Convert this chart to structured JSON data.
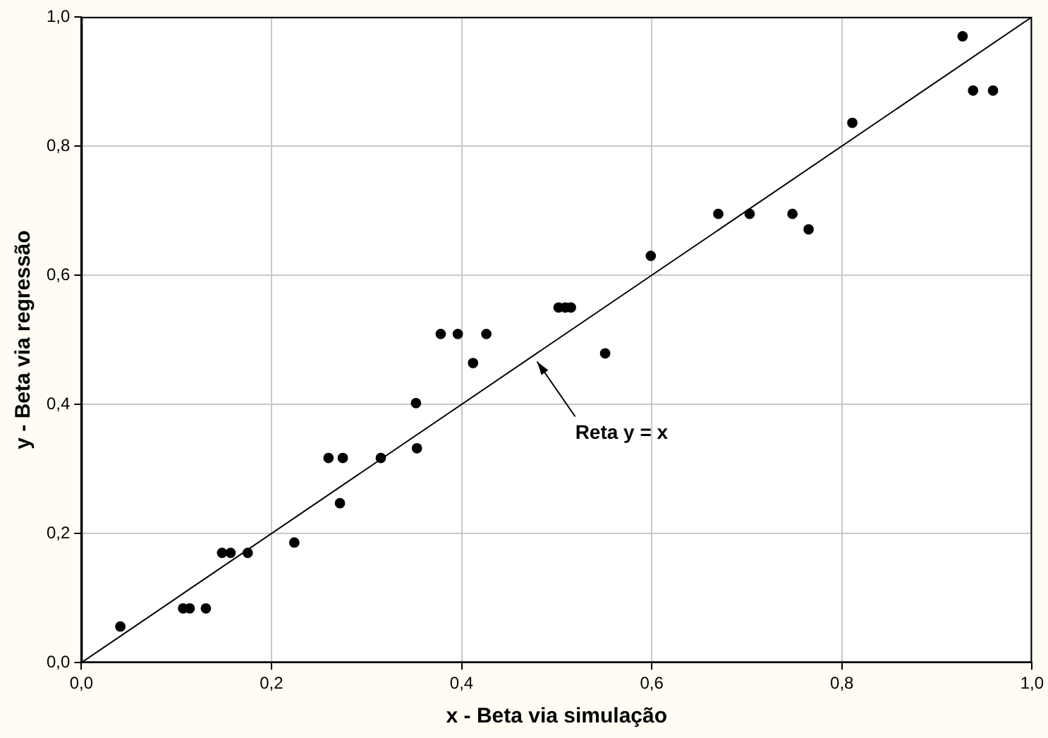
{
  "chart_data": {
    "type": "scatter",
    "xlabel": "x - Beta via simulação",
    "ylabel": "y - Beta via regressão",
    "series": [
      {
        "color": "#000000",
        "marker": "circle",
        "x": [
          0.041,
          0.107,
          0.114,
          0.131,
          0.148,
          0.157,
          0.175,
          0.224,
          0.26,
          0.275,
          0.272,
          0.315,
          0.352,
          0.353,
          0.412,
          0.378,
          0.396,
          0.426,
          0.502,
          0.509,
          0.515,
          0.551,
          0.599,
          0.67,
          0.703,
          0.748,
          0.765,
          0.811,
          0.927,
          0.938,
          0.959
        ],
        "values": [
          0.056,
          0.084,
          0.084,
          0.084,
          0.17,
          0.17,
          0.17,
          0.186,
          0.317,
          0.317,
          0.247,
          0.317,
          0.402,
          0.332,
          0.464,
          0.509,
          0.509,
          0.509,
          0.55,
          0.55,
          0.55,
          0.479,
          0.63,
          0.695,
          0.695,
          0.695,
          0.671,
          0.836,
          0.97,
          0.886,
          0.886
        ]
      },
      {
        "type": "line",
        "color": "#000000",
        "marker": "none",
        "line_style": "solid",
        "x": [
          0,
          1
        ],
        "values": [
          0,
          1
        ]
      }
    ],
    "xlim": [
      0,
      1
    ],
    "ylim": [
      0,
      1
    ],
    "xticks": [
      {
        "value": 0,
        "label": "0,0"
      },
      {
        "value": 0.2,
        "label": "0,2"
      },
      {
        "value": 0.4,
        "label": "0,4"
      },
      {
        "value": 0.6,
        "label": "0,6"
      },
      {
        "value": 0.8,
        "label": "0,8"
      },
      {
        "value": 1,
        "label": "1,0"
      }
    ],
    "yticks": [
      {
        "value": 0,
        "label": "0,0"
      },
      {
        "value": 0.2,
        "label": "0,2"
      },
      {
        "value": 0.4,
        "label": "0,4"
      },
      {
        "value": 0.6,
        "label": "0,6"
      },
      {
        "value": 0.8,
        "label": "0,8"
      },
      {
        "value": 1,
        "label": "1,0"
      }
    ],
    "grid": true,
    "legend": false,
    "annotations": [
      "Reta y = x"
    ]
  }
}
